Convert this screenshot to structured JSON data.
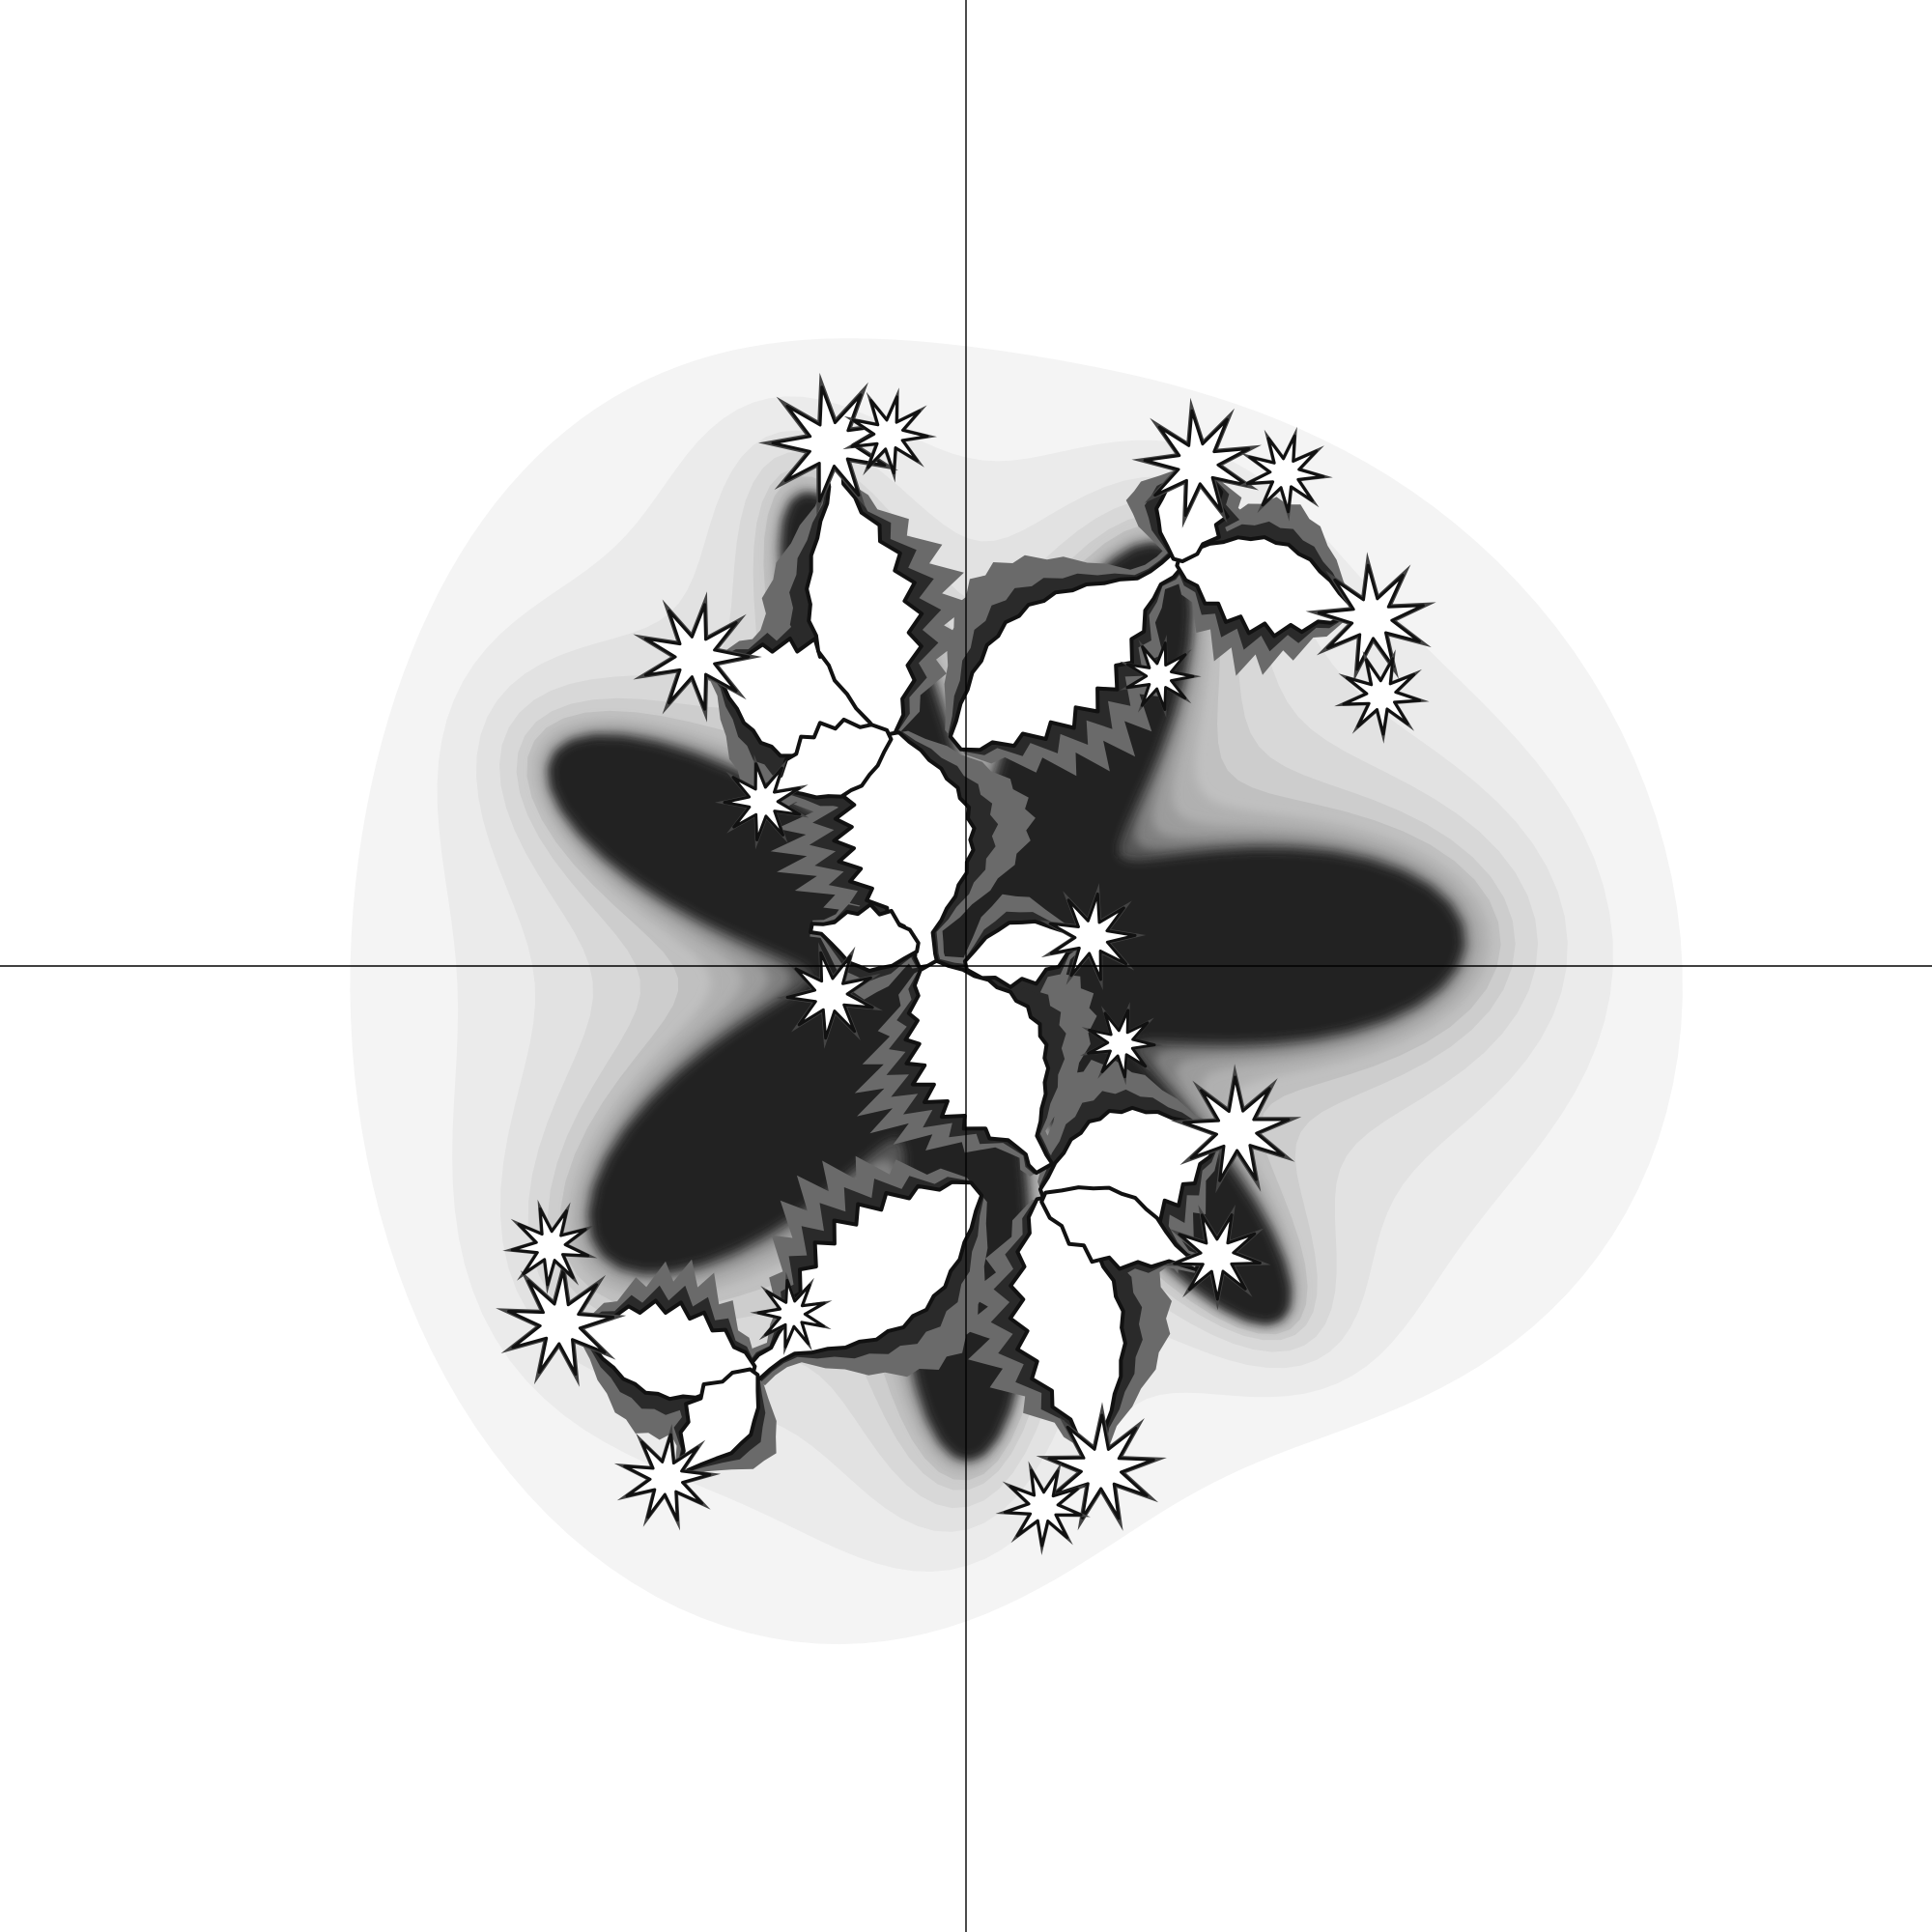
{
  "image": {
    "subject": "julia-set-fractal",
    "axes_visible": true,
    "colors": {
      "background": "#ffffff",
      "axis_line": "#000000",
      "interior": "#ffffff",
      "boundary": "#111111",
      "shade_levels": [
        "#f4f4f4",
        "#ebebeb",
        "#e2e2e2",
        "#d8d8d8",
        "#cdcdcd",
        "#c0c0c0",
        "#b0b0b0",
        "#9c9c9c",
        "#808080",
        "#555555",
        "#222222"
      ]
    }
  }
}
